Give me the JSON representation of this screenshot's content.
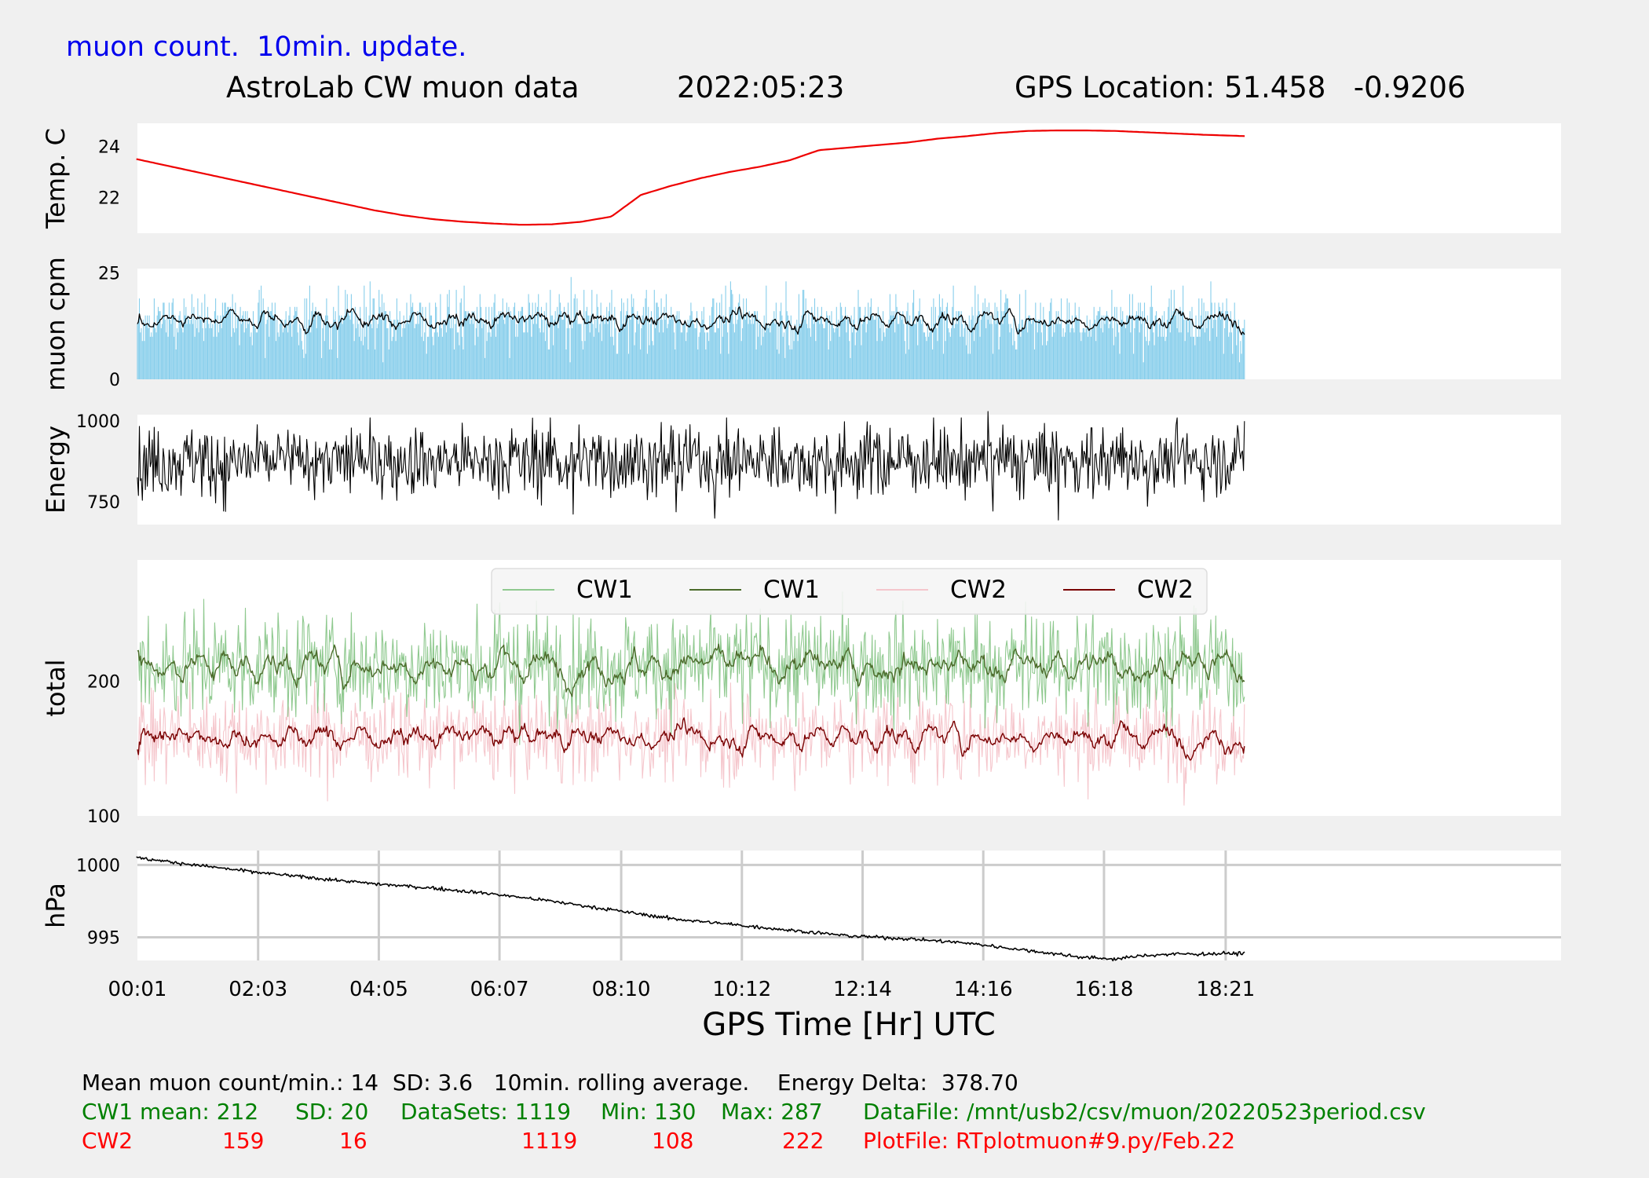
{
  "header": {
    "update_note": "muon count.  10min. update.",
    "title": "AstroLab CW muon data",
    "date": "2022:05:23",
    "gps_location": "GPS Location: 51.458   -0.9206"
  },
  "colors": {
    "update_note": "#0000ee",
    "temp_line": "#ee0000",
    "muon_bars": "#87ceeb",
    "rolling_avg": "#000000",
    "cw1_raw": "#8fc98f",
    "cw1_avg": "#4b6b2a",
    "cw2_raw": "#f5c6cc",
    "cw2_avg": "#7a0000",
    "green_text": "#008000",
    "red_text": "#ff0000"
  },
  "chart_data": {
    "type": "line",
    "xlabel": "GPS Time  [Hr] UTC",
    "x_ticks": [
      "00:01",
      "02:03",
      "04:05",
      "06:07",
      "08:10",
      "10:12",
      "12:14",
      "14:16",
      "16:18",
      "18:21"
    ],
    "x_range": [
      "00:01",
      "24:00"
    ],
    "data_end_time": "18:40",
    "panels": [
      {
        "name": "temperature",
        "ylabel": "Temp. C",
        "ylim": [
          20.6,
          24.9
        ],
        "yticks": [
          22,
          24
        ],
        "series": [
          {
            "x_hours": [
              0,
              0.5,
              1,
              1.5,
              2,
              2.5,
              3,
              3.5,
              4,
              4.5,
              5,
              5.5,
              6,
              6.5,
              7,
              7.5,
              8,
              8.5,
              9,
              9.5,
              10,
              10.5,
              11,
              11.5,
              12,
              12.5,
              13,
              13.5,
              14,
              14.5,
              15,
              15.5,
              16,
              16.5,
              17,
              17.5,
              18,
              18.67
            ],
            "values": [
              23.5,
              23.25,
              23.0,
              22.75,
              22.5,
              22.25,
              22.0,
              21.75,
              21.5,
              21.3,
              21.15,
              21.05,
              20.98,
              20.93,
              20.95,
              21.05,
              21.25,
              22.1,
              22.45,
              22.75,
              23.0,
              23.2,
              23.45,
              23.85,
              23.95,
              24.05,
              24.15,
              24.3,
              24.4,
              24.52,
              24.6,
              24.62,
              24.62,
              24.6,
              24.55,
              24.5,
              24.45,
              24.4
            ]
          }
        ]
      },
      {
        "name": "muon_cpm",
        "ylabel": "muon cpm",
        "ylim": [
          0,
          26
        ],
        "yticks": [
          0,
          25
        ],
        "series": [
          {
            "name": "per-minute counts",
            "mean": 14,
            "sd": 3.6,
            "count": 1119
          },
          {
            "name": "10min. rolling average",
            "mean": 14
          }
        ]
      },
      {
        "name": "energy",
        "ylabel": "Energy",
        "ylim": [
          680,
          1020
        ],
        "yticks": [
          750,
          1000
        ],
        "series": [
          {
            "mean": 878,
            "min": 686,
            "max": 1030,
            "delta": 378.7
          }
        ]
      },
      {
        "name": "total",
        "ylabel": "total",
        "ylim": [
          100,
          290
        ],
        "yticks": [
          100,
          200
        ],
        "legend": [
          "CW1",
          "CW1",
          "CW2",
          "CW2"
        ],
        "legend_position": "top-center",
        "series": [
          {
            "name": "CW1",
            "style": "raw",
            "mean": 212,
            "sd": 20,
            "min": 130,
            "max": 287
          },
          {
            "name": "CW1",
            "style": "rolling",
            "mean": 212
          },
          {
            "name": "CW2",
            "style": "raw",
            "mean": 159,
            "sd": 16,
            "min": 108,
            "max": 222
          },
          {
            "name": "CW2",
            "style": "rolling",
            "mean": 159
          }
        ]
      },
      {
        "name": "pressure",
        "ylabel": "hPa",
        "ylim": [
          993.4,
          1001.0
        ],
        "yticks": [
          995,
          1000
        ],
        "grid": true,
        "series": [
          {
            "x_hours": [
              0,
              1,
              2,
              3,
              4,
              5,
              6,
              7,
              8,
              9,
              10,
              11,
              12,
              13,
              14,
              15,
              16,
              16.5,
              17,
              17.5,
              18,
              18.67
            ],
            "values": [
              1000.5,
              1000.0,
              999.5,
              999.1,
              998.7,
              998.4,
              998.0,
              997.5,
              996.9,
              996.3,
              995.9,
              995.5,
              995.1,
              994.9,
              994.6,
              994.1,
              993.6,
              993.5,
              993.75,
              993.85,
              993.85,
              993.9
            ]
          }
        ]
      }
    ]
  },
  "stats": {
    "summary": "Mean muon count/min.: 14  SD: 3.6   10min. rolling average.    Energy Delta:  378.70",
    "cw1": {
      "label": "CW1 mean: 212",
      "sd": "SD: 20",
      "datasets": "DataSets: 1119",
      "min": "Min: 130",
      "max": "Max: 287",
      "file": "DataFile: /mnt/usb2/csv/muon/20220523period.csv"
    },
    "cw2": {
      "label": "CW2",
      "mean": "159",
      "sd": "16",
      "datasets": "1119",
      "min": "108",
      "max": "222",
      "file": "PlotFile: RTplotmuon#9.py/Feb.22"
    }
  }
}
